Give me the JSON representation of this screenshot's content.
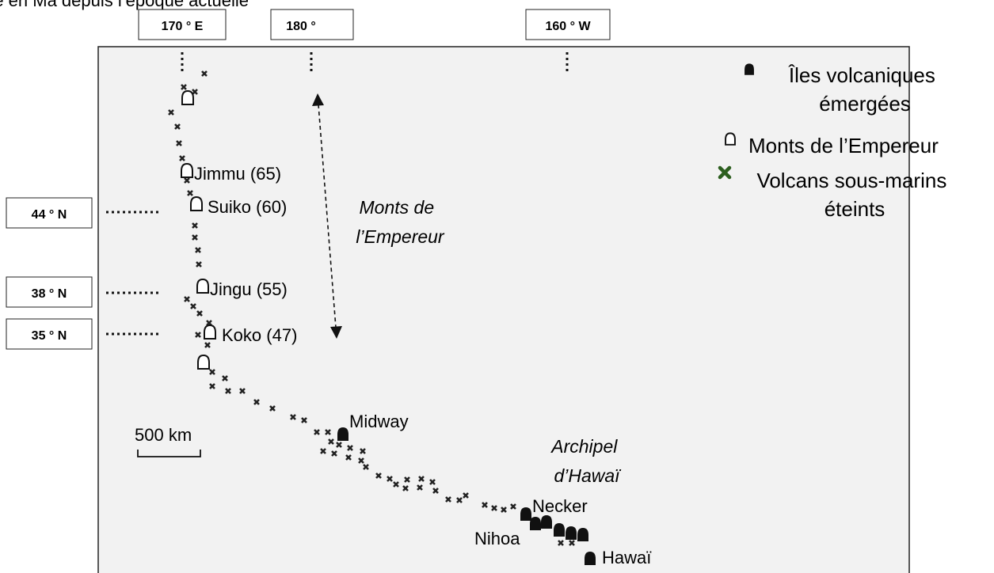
{
  "caption_fragment": "(…), ainsi que leur âge en Ma depuis l’époque actuelle",
  "longitudes": [
    "170 ° E",
    "180 °",
    "160 ° W"
  ],
  "latitudes": [
    "44 ° N",
    "38 ° N",
    "35 ° N"
  ],
  "seamounts": [
    {
      "name": "Jimmu",
      "age": "(65)"
    },
    {
      "name": "Suiko",
      "age": "(60)"
    },
    {
      "name": "Jingu",
      "age": "(55)"
    },
    {
      "name": "Koko",
      "age": "(47)"
    }
  ],
  "islands": [
    "Midway",
    "Necker",
    "Nihoa",
    "Hawaï"
  ],
  "chain_label": [
    "Monts de",
    "l’Empereur"
  ],
  "archipelago_label": [
    "Archipel",
    "d’Hawaï"
  ],
  "scale_bar": "500 km",
  "legend": {
    "emerged": [
      "Îles volcaniques",
      "émergées"
    ],
    "seamount": "Monts de l’Empereur",
    "submarine": [
      "Volcans sous-marins",
      "éteints"
    ]
  },
  "colors": {
    "submarine_marker": "#2d5f1f",
    "map_bg": "#f2f2f2"
  }
}
